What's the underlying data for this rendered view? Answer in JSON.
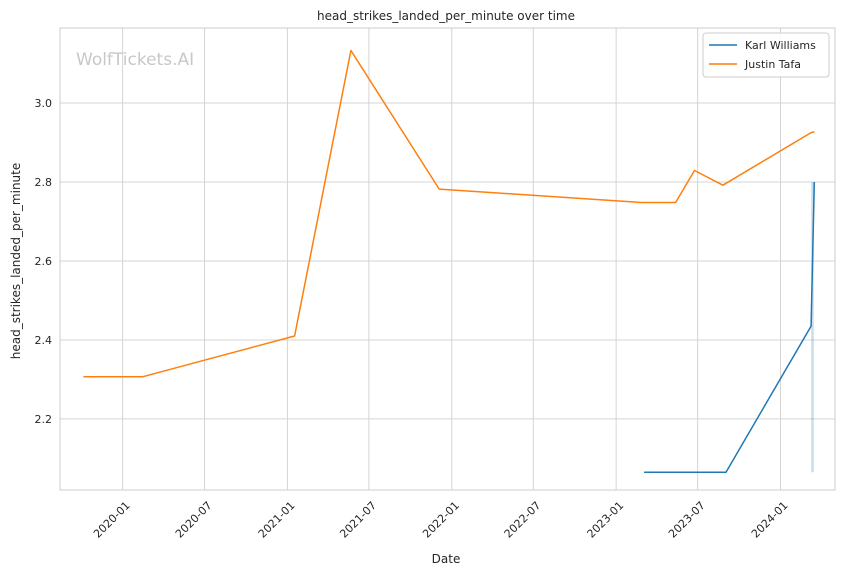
{
  "chart_data": {
    "type": "line",
    "title": "head_strikes_landed_per_minute over time",
    "xlabel": "Date",
    "ylabel": "head_strikes_landed_per_minute",
    "watermark": "WolfTickets.AI",
    "x_ticks": [
      "2020-01",
      "2020-07",
      "2021-01",
      "2021-07",
      "2022-01",
      "2022-07",
      "2023-01",
      "2023-07",
      "2024-01"
    ],
    "y_ticks": [
      "2.2",
      "2.4",
      "2.6",
      "2.8",
      "3.0"
    ],
    "xlim": [
      "2019-08-15",
      "2024-05-01"
    ],
    "ylim": [
      2.02,
      3.19
    ],
    "grid": true,
    "legend_position": "top-right",
    "series": [
      {
        "name": "Karl Williams",
        "color": "#1f77b4",
        "points": [
          {
            "x": "2023-03-04",
            "y": 2.065
          },
          {
            "x": "2023-09-02",
            "y": 2.065
          },
          {
            "x": "2024-03-09",
            "y": 2.435
          },
          {
            "x": "2024-03-16",
            "y": 2.8
          }
        ],
        "band": {
          "x": "2024-03-12",
          "low": 2.065,
          "high": 2.8
        }
      },
      {
        "name": "Justin Tafa",
        "color": "#ff7f0e",
        "points": [
          {
            "x": "2019-10-06",
            "y": 2.307
          },
          {
            "x": "2020-02-15",
            "y": 2.307
          },
          {
            "x": "2021-01-17",
            "y": 2.41
          },
          {
            "x": "2021-05-22",
            "y": 3.133
          },
          {
            "x": "2021-12-04",
            "y": 2.782
          },
          {
            "x": "2023-02-25",
            "y": 2.748
          },
          {
            "x": "2023-05-13",
            "y": 2.748
          },
          {
            "x": "2023-06-24",
            "y": 2.829
          },
          {
            "x": "2023-08-26",
            "y": 2.792
          },
          {
            "x": "2024-03-09",
            "y": 2.925
          },
          {
            "x": "2024-03-16",
            "y": 2.927
          }
        ]
      }
    ]
  }
}
